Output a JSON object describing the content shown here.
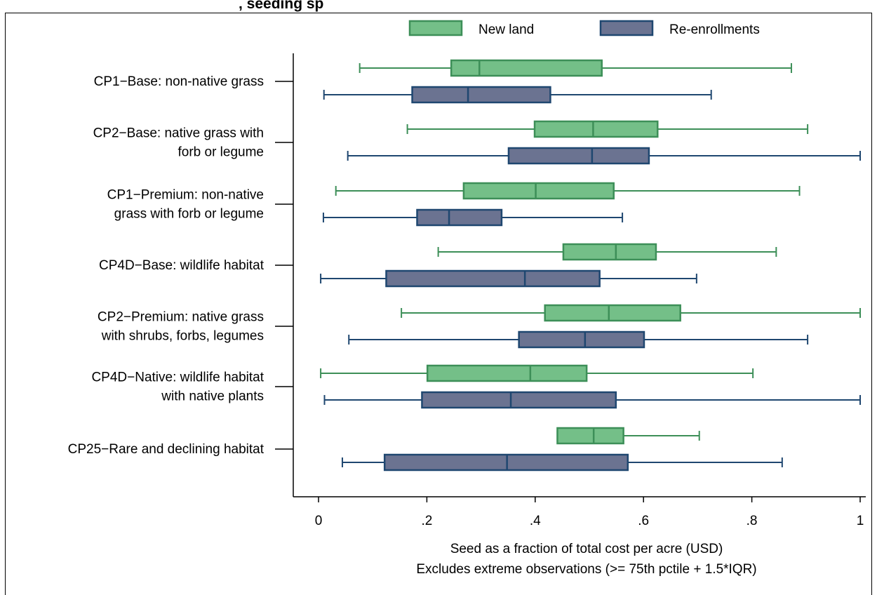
{
  "chart_data": {
    "type": "box",
    "title_fragment": ", seeding sp",
    "xlabel": "Seed as a fraction of total cost per acre (USD)",
    "note": "Excludes extreme observations (>= 75th pctile + 1.5*IQR)",
    "xlim": [
      0,
      1
    ],
    "x_ticks": [
      0,
      0.2,
      0.4,
      0.6,
      0.8,
      1
    ],
    "x_tick_labels": [
      "0",
      ".2",
      ".4",
      ".6",
      ".8",
      "1"
    ],
    "grid": false,
    "legend": {
      "position": "top",
      "entries": [
        "New land",
        "Re-enrollments"
      ]
    },
    "colors": {
      "new_land_fill": "#74bf88",
      "new_land_stroke": "#3d8f58",
      "reenroll_fill": "#6b7391",
      "reenroll_stroke": "#1f4770"
    },
    "series": [
      {
        "name": "New land",
        "boxes": [
          {
            "min": 0.076,
            "q1": 0.245,
            "median": 0.297,
            "q3": 0.523,
            "max": 0.873
          },
          {
            "min": 0.164,
            "q1": 0.399,
            "median": 0.507,
            "q3": 0.626,
            "max": 0.903
          },
          {
            "min": 0.032,
            "q1": 0.268,
            "median": 0.401,
            "q3": 0.545,
            "max": 0.888
          },
          {
            "min": 0.221,
            "q1": 0.452,
            "median": 0.549,
            "q3": 0.623,
            "max": 0.845
          },
          {
            "min": 0.153,
            "q1": 0.418,
            "median": 0.536,
            "q3": 0.668,
            "max": 1.0
          },
          {
            "min": 0.004,
            "q1": 0.201,
            "median": 0.391,
            "q3": 0.495,
            "max": 0.802
          },
          {
            "min": 0.441,
            "q1": 0.441,
            "median": 0.508,
            "q3": 0.563,
            "max": 0.703
          }
        ]
      },
      {
        "name": "Re-enrollments",
        "boxes": [
          {
            "min": 0.01,
            "q1": 0.173,
            "median": 0.276,
            "q3": 0.428,
            "max": 0.725
          },
          {
            "min": 0.054,
            "q1": 0.351,
            "median": 0.505,
            "q3": 0.61,
            "max": 1.0
          },
          {
            "min": 0.009,
            "q1": 0.182,
            "median": 0.241,
            "q3": 0.338,
            "max": 0.561
          },
          {
            "min": 0.004,
            "q1": 0.125,
            "median": 0.381,
            "q3": 0.519,
            "max": 0.698
          },
          {
            "min": 0.056,
            "q1": 0.37,
            "median": 0.492,
            "q3": 0.601,
            "max": 0.903
          },
          {
            "min": 0.011,
            "q1": 0.191,
            "median": 0.355,
            "q3": 0.549,
            "max": 1.0
          },
          {
            "min": 0.044,
            "q1": 0.122,
            "median": 0.348,
            "q3": 0.571,
            "max": 0.856
          }
        ]
      }
    ],
    "categories": [
      [
        "CP1−Base: non-native grass"
      ],
      [
        "CP2−Base: native grass with",
        "forb or legume"
      ],
      [
        "CP1−Premium: non-native",
        "grass with forb or legume"
      ],
      [
        "CP4D−Base: wildlife habitat"
      ],
      [
        "CP2−Premium: native grass",
        "with shrubs, forbs, legumes"
      ],
      [
        "CP4D−Native: wildlife habitat",
        "with native plants"
      ],
      [
        "CP25−Rare and declining habitat"
      ]
    ]
  }
}
